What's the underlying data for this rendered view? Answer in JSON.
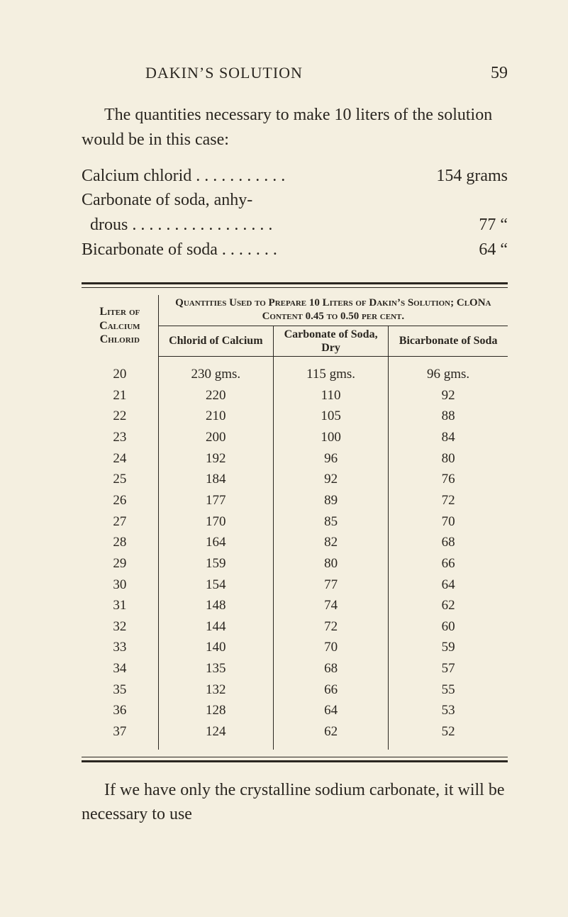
{
  "colors": {
    "background": "#f4efe0",
    "text": "#2a2620",
    "rule": "#2a2620"
  },
  "typography": {
    "body_family": "Georgia, 'Times New Roman', serif",
    "body_size_pt": 18,
    "header_size_pt": 16,
    "table_body_size_pt": 14
  },
  "header": {
    "running_head": "DAKIN’S SOLUTION",
    "page_number": "59"
  },
  "paragraph_intro": "The quantities necessary to make 10 liters of the solution would be in this case:",
  "ingredients": [
    {
      "name": "Calcium chlorid . . . . . . . . . . .",
      "qty": "154 grams"
    },
    {
      "name": "Carbonate of soda, anhy-",
      "qty": ""
    },
    {
      "name": "  drous . . . . . . . . . . . . . . . . .",
      "qty": "77     “"
    },
    {
      "name": "Bicarbonate of soda . . . . . . .",
      "qty": "64     “"
    }
  ],
  "table": {
    "type": "table",
    "left_header": "Liter of Calcium Chlorid",
    "top_header": "Quantities Used to Prepare 10 Liters of Dakin’s Solution; ClONa Content 0.45 to 0.50 per cent.",
    "columns": [
      "Chlorid of Calcium",
      "Carbonate of Soda, Dry",
      "Bicarbonate of Soda"
    ],
    "col_widths_pct": [
      18,
      27,
      27,
      28
    ],
    "border_color": "#2a2620",
    "font_size_pt": 14,
    "rows": [
      [
        "20",
        "230 gms.",
        "115 gms.",
        "96 gms."
      ],
      [
        "21",
        "220",
        "110",
        "92"
      ],
      [
        "22",
        "210",
        "105",
        "88"
      ],
      [
        "23",
        "200",
        "100",
        "84"
      ],
      [
        "24",
        "192",
        "96",
        "80"
      ],
      [
        "25",
        "184",
        "92",
        "76"
      ],
      [
        "26",
        "177",
        "89",
        "72"
      ],
      [
        "27",
        "170",
        "85",
        "70"
      ],
      [
        "28",
        "164",
        "82",
        "68"
      ],
      [
        "29",
        "159",
        "80",
        "66"
      ],
      [
        "30",
        "154",
        "77",
        "64"
      ],
      [
        "31",
        "148",
        "74",
        "62"
      ],
      [
        "32",
        "144",
        "72",
        "60"
      ],
      [
        "33",
        "140",
        "70",
        "59"
      ],
      [
        "34",
        "135",
        "68",
        "57"
      ],
      [
        "35",
        "132",
        "66",
        "55"
      ],
      [
        "36",
        "128",
        "64",
        "53"
      ],
      [
        "37",
        "124",
        "62",
        "52"
      ]
    ]
  },
  "paragraph_closing": "If we have only the crystalline sodium carbonate, it will be necessary to use"
}
